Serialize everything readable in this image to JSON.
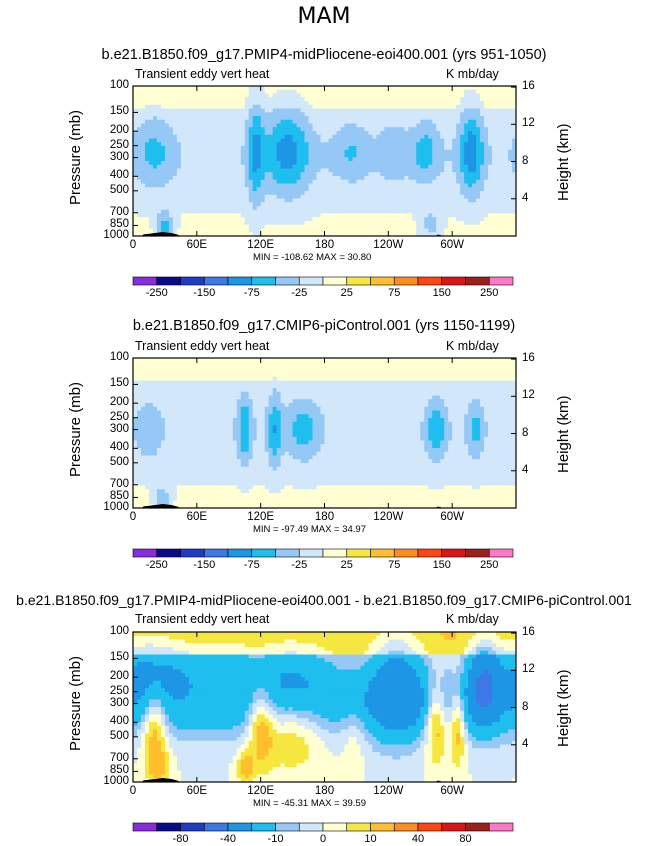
{
  "figure": {
    "season": "MAM"
  },
  "chart_data": [
    {
      "type": "heatmap",
      "title": "b.e21.B1850.f09_g17.PMIP4-midPliocene-eoi400.001 (yrs 951-1050)",
      "left_label": "Transient eddy vert heat",
      "right_label": "K mb/day",
      "ylabel": "Pressure (mb)",
      "ylabel_right": "Height (km)",
      "xticks": [
        "0",
        "60E",
        "120E",
        "180",
        "120W",
        "60W"
      ],
      "yticks": [
        "100",
        "150",
        "200",
        "250",
        "300",
        "400",
        "500",
        "700",
        "850",
        "1000"
      ],
      "yticks_right": [
        "16",
        "12",
        "8",
        "4"
      ],
      "stats": "MIN = -108.62   MAX =  30.80",
      "min": -108.62,
      "max": 30.8,
      "colorbar_labels": [
        "-250",
        "-150",
        "-75",
        "-25",
        "25",
        "75",
        "150",
        "250"
      ],
      "colorbar_levels": [
        -250,
        -200,
        -150,
        -100,
        -75,
        -50,
        -25,
        0,
        25,
        50,
        75,
        100,
        150,
        200,
        250
      ],
      "colorbar_colors": [
        "#8a2be2",
        "#0a0a8c",
        "#1e3cc8",
        "#3c78e6",
        "#1e96e6",
        "#1ebeee",
        "#96c8f5",
        "#d2e8fa",
        "#ffffd2",
        "#f5e640",
        "#ffbe2d",
        "#ff8c1e",
        "#ff4614",
        "#dc1414",
        "#a01e1e",
        "#ff78c8"
      ],
      "blobs": [
        {
          "lon": 20,
          "p": 270,
          "lonr": 20,
          "logr": 0.12,
          "value": -40
        },
        {
          "lon": 115,
          "p": 270,
          "lonr": 8,
          "logr": 0.18,
          "value": -60
        },
        {
          "lon": 145,
          "p": 270,
          "lonr": 22,
          "logr": 0.14,
          "value": -70
        },
        {
          "lon": 205,
          "p": 270,
          "lonr": 18,
          "logr": 0.1,
          "value": -35
        },
        {
          "lon": 245,
          "p": 270,
          "lonr": 14,
          "logr": 0.1,
          "value": -30
        },
        {
          "lon": 275,
          "p": 270,
          "lonr": 14,
          "logr": 0.1,
          "value": -45
        },
        {
          "lon": 318,
          "p": 270,
          "lonr": 12,
          "logr": 0.14,
          "value": -75
        },
        {
          "lon": 30,
          "p": 880,
          "lonr": 8,
          "logr": 0.05,
          "value": -70
        },
        {
          "lon": 280,
          "p": 850,
          "lonr": 10,
          "logr": 0.05,
          "value": -40
        }
      ]
    },
    {
      "type": "heatmap",
      "title": "b.e21.B1850.f09_g17.CMIP6-piControl.001 (yrs 1150-1199)",
      "left_label": "Transient eddy vert heat",
      "right_label": "K mb/day",
      "ylabel": "Pressure (mb)",
      "ylabel_right": "Height (km)",
      "xticks": [
        "0",
        "60E",
        "120E",
        "180",
        "120W",
        "60W"
      ],
      "yticks": [
        "100",
        "150",
        "200",
        "250",
        "300",
        "400",
        "500",
        "700",
        "850",
        "1000"
      ],
      "yticks_right": [
        "16",
        "12",
        "8",
        "4"
      ],
      "stats": "MIN = -97.49   MAX =  34.97",
      "min": -97.49,
      "max": 34.97,
      "colorbar_labels": [
        "-250",
        "-150",
        "-75",
        "-25",
        "25",
        "75",
        "150",
        "250"
      ],
      "colorbar_levels": [
        -250,
        -200,
        -150,
        -100,
        -75,
        -50,
        -25,
        0,
        25,
        50,
        75,
        100,
        150,
        200,
        250
      ],
      "colorbar_colors": [
        "#8a2be2",
        "#0a0a8c",
        "#1e3cc8",
        "#3c78e6",
        "#1e96e6",
        "#1ebeee",
        "#96c8f5",
        "#d2e8fa",
        "#ffffd2",
        "#f5e640",
        "#ffbe2d",
        "#ff8c1e",
        "#ff4614",
        "#dc1414",
        "#a01e1e",
        "#ff78c8"
      ],
      "blobs": [
        {
          "lon": 15,
          "p": 300,
          "lonr": 12,
          "logr": 0.1,
          "value": -30
        },
        {
          "lon": 105,
          "p": 300,
          "lonr": 7,
          "logr": 0.12,
          "value": -55
        },
        {
          "lon": 133,
          "p": 300,
          "lonr": 7,
          "logr": 0.12,
          "value": -55
        },
        {
          "lon": 160,
          "p": 300,
          "lonr": 16,
          "logr": 0.1,
          "value": -45
        },
        {
          "lon": 285,
          "p": 300,
          "lonr": 10,
          "logr": 0.1,
          "value": -50
        },
        {
          "lon": 322,
          "p": 300,
          "lonr": 8,
          "logr": 0.1,
          "value": -40
        },
        {
          "lon": 28,
          "p": 880,
          "lonr": 8,
          "logr": 0.05,
          "value": -45
        }
      ]
    },
    {
      "type": "heatmap",
      "title": "b.e21.B1850.f09_g17.PMIP4-midPliocene-eoi400.001 - b.e21.B1850.f09_g17.CMIP6-piControl.001",
      "left_label": "Transient eddy vert heat",
      "right_label": "K mb/day",
      "ylabel": "Pressure (mb)",
      "ylabel_right": "Height (km)",
      "xticks": [
        "0",
        "60E",
        "120E",
        "180",
        "120W",
        "60W"
      ],
      "yticks": [
        "100",
        "150",
        "200",
        "250",
        "300",
        "400",
        "500",
        "700",
        "850",
        "1000"
      ],
      "yticks_right": [
        "16",
        "12",
        "8",
        "4"
      ],
      "stats": "MIN = -45.31   MAX =  39.59",
      "min": -45.31,
      "max": 39.59,
      "colorbar_labels": [
        "-80",
        "-40",
        "-10",
        "0",
        "10",
        "40",
        "80"
      ],
      "colorbar_levels": [
        -100,
        -80,
        -60,
        -40,
        -20,
        -10,
        -5,
        0,
        5,
        10,
        20,
        40,
        60,
        80,
        100
      ],
      "colorbar_colors": [
        "#8a2be2",
        "#0a0a8c",
        "#1e3cc8",
        "#3c78e6",
        "#1e96e6",
        "#1ebeee",
        "#96c8f5",
        "#d2e8fa",
        "#ffffd2",
        "#f5e640",
        "#ffbe2d",
        "#ff8c1e",
        "#ff4614",
        "#dc1414",
        "#a01e1e",
        "#ff78c8"
      ],
      "blobs": [
        {
          "lon": 15,
          "p": 180,
          "lonr": 30,
          "logr": 0.1,
          "value": -20
        },
        {
          "lon": 75,
          "p": 170,
          "lonr": 40,
          "logr": 0.08,
          "value": -12
        },
        {
          "lon": 150,
          "p": 190,
          "lonr": 40,
          "logr": 0.1,
          "value": -15
        },
        {
          "lon": 248,
          "p": 230,
          "lonr": 25,
          "logr": 0.16,
          "value": -25
        },
        {
          "lon": 330,
          "p": 220,
          "lonr": 15,
          "logr": 0.12,
          "value": -38
        },
        {
          "lon": 20,
          "p": 420,
          "lonr": 12,
          "logr": 0.14,
          "value": 22
        },
        {
          "lon": 120,
          "p": 400,
          "lonr": 12,
          "logr": 0.13,
          "value": 20
        },
        {
          "lon": 150,
          "p": 450,
          "lonr": 30,
          "logr": 0.12,
          "value": 15
        },
        {
          "lon": 208,
          "p": 450,
          "lonr": 12,
          "logr": 0.1,
          "value": 8
        },
        {
          "lon": 285,
          "p": 380,
          "lonr": 10,
          "logr": 0.12,
          "value": 25
        },
        {
          "lon": 305,
          "p": 400,
          "lonr": 8,
          "logr": 0.12,
          "value": 22
        },
        {
          "lon": 105,
          "p": 800,
          "lonr": 8,
          "logr": 0.05,
          "value": 15
        },
        {
          "lon": 25,
          "p": 800,
          "lonr": 10,
          "logr": 0.05,
          "value": 10
        }
      ]
    }
  ]
}
